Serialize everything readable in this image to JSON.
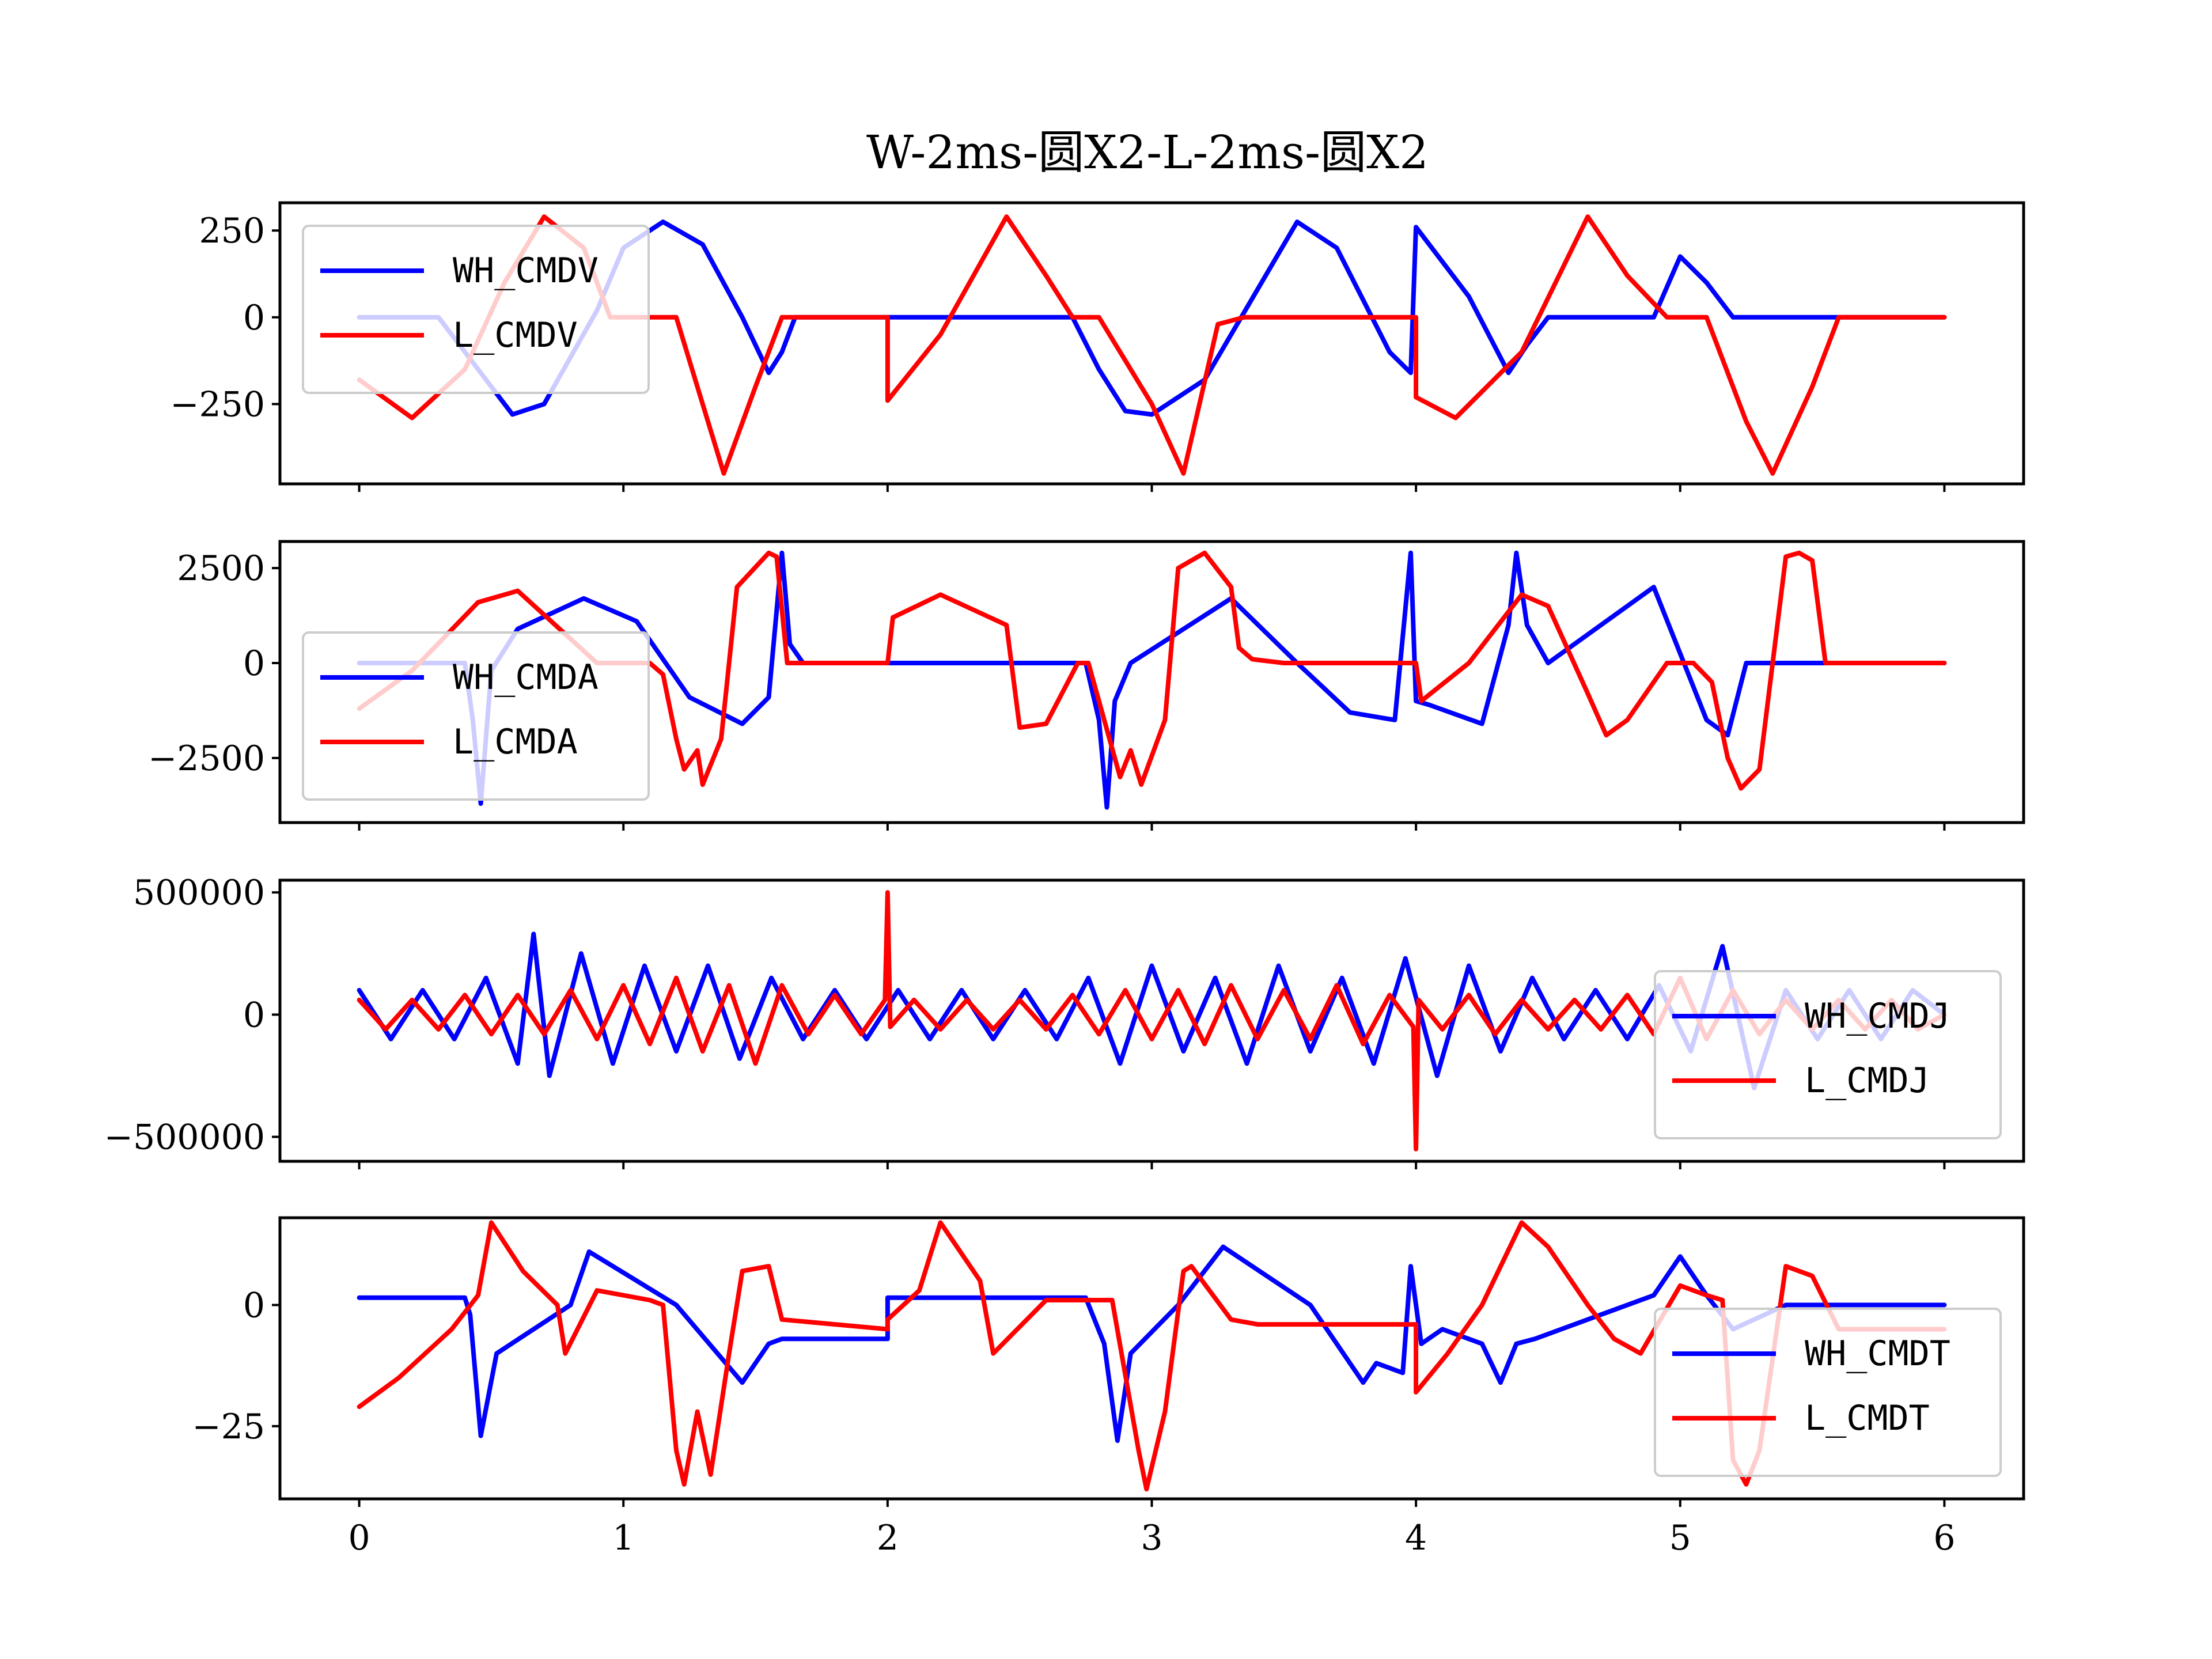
{
  "figure": {
    "title": "W-2ms-圆X2-L-2ms-圆X2"
  },
  "chart_data": [
    {
      "type": "line",
      "title": "",
      "xlabel": "",
      "ylabel": "",
      "xlim": [
        -0.3,
        6.3
      ],
      "ylim": [
        -480,
        330
      ],
      "xticks": [
        0,
        1,
        2,
        3,
        4,
        5,
        6
      ],
      "yticks": [
        -250,
        0,
        250
      ],
      "ytick_labels": [
        "−250",
        "0",
        "250"
      ],
      "legend": "upper-left",
      "grid": false,
      "series": [
        {
          "name": "WH_CMDV",
          "color": "#0000ff",
          "x": [
            0,
            0.3,
            0.5,
            0.58,
            0.7,
            0.9,
            1.0,
            1.15,
            1.3,
            1.45,
            1.55,
            1.6,
            1.65,
            2.0,
            2.7,
            2.8,
            2.9,
            3.0,
            3.2,
            3.55,
            3.7,
            3.9,
            3.98,
            4.0,
            4.2,
            4.35,
            4.42,
            4.5,
            4.9,
            5.0,
            5.1,
            5.2,
            6.0
          ],
          "y": [
            0,
            0,
            -200,
            -280,
            -250,
            20,
            200,
            275,
            210,
            0,
            -160,
            -100,
            0,
            0,
            0,
            -150,
            -270,
            -280,
            -180,
            275,
            200,
            -100,
            -160,
            260,
            60,
            -160,
            -80,
            0,
            0,
            175,
            100,
            0,
            0
          ]
        },
        {
          "name": "L_CMDV",
          "color": "#ff0000",
          "x": [
            0,
            0.2,
            0.4,
            0.55,
            0.7,
            0.85,
            0.95,
            1.2,
            1.3,
            1.38,
            1.5,
            1.6,
            2.0,
            2.0,
            2.2,
            2.45,
            2.6,
            2.7,
            2.8,
            3.0,
            3.12,
            3.25,
            3.35,
            4.0,
            4.0,
            4.15,
            4.4,
            4.65,
            4.8,
            4.95,
            5.1,
            5.25,
            5.35,
            5.5,
            5.6,
            6.0
          ],
          "y": [
            -180,
            -290,
            -150,
            100,
            290,
            200,
            0,
            0,
            -250,
            -450,
            -200,
            0,
            0,
            -240,
            -50,
            290,
            120,
            0,
            0,
            -250,
            -450,
            -20,
            0,
            0,
            -230,
            -290,
            -100,
            290,
            120,
            0,
            0,
            -300,
            -450,
            -200,
            0,
            0
          ]
        }
      ]
    },
    {
      "type": "line",
      "title": "",
      "xlabel": "",
      "ylabel": "",
      "xlim": [
        -0.3,
        6.3
      ],
      "ylim": [
        -4200,
        3200
      ],
      "xticks": [
        0,
        1,
        2,
        3,
        4,
        5,
        6
      ],
      "yticks": [
        -2500,
        0,
        2500
      ],
      "ytick_labels": [
        "−2500",
        "0",
        "2500"
      ],
      "legend": "lower-left",
      "grid": false,
      "series": [
        {
          "name": "WH_CMDA",
          "color": "#0000ff",
          "x": [
            0,
            0.4,
            0.43,
            0.46,
            0.5,
            0.6,
            0.85,
            1.05,
            1.25,
            1.45,
            1.55,
            1.6,
            1.63,
            1.68,
            2.0,
            2.75,
            2.8,
            2.83,
            2.86,
            2.92,
            3.3,
            3.55,
            3.75,
            3.92,
            3.98,
            4.0,
            4.05,
            4.25,
            4.35,
            4.38,
            4.42,
            4.5,
            4.9,
            5.1,
            5.18,
            5.25,
            6.0
          ],
          "y": [
            0,
            0,
            -1500,
            -3700,
            -200,
            900,
            1700,
            1100,
            -900,
            -1600,
            -900,
            2900,
            500,
            0,
            0,
            0,
            -1500,
            -3800,
            -1000,
            0,
            1700,
            0,
            -1300,
            -1500,
            2900,
            -1000,
            -1100,
            -1600,
            1000,
            2900,
            1000,
            0,
            2000,
            -1500,
            -1900,
            0,
            0
          ]
        },
        {
          "name": "L_CMDA",
          "color": "#ff0000",
          "x": [
            0,
            0.2,
            0.45,
            0.6,
            0.9,
            1.1,
            1.15,
            1.2,
            1.23,
            1.28,
            1.3,
            1.37,
            1.43,
            1.55,
            1.58,
            1.62,
            2.0,
            2.02,
            2.2,
            2.45,
            2.5,
            2.6,
            2.72,
            2.76,
            2.88,
            2.92,
            2.96,
            3.05,
            3.1,
            3.2,
            3.3,
            3.33,
            3.38,
            3.5,
            4.0,
            4.02,
            4.2,
            4.4,
            4.5,
            4.65,
            4.72,
            4.8,
            4.95,
            5.05,
            5.12,
            5.18,
            5.23,
            5.3,
            5.4,
            5.45,
            5.5,
            5.55,
            5.6,
            6.0
          ],
          "y": [
            -1200,
            -200,
            1600,
            1900,
            0,
            0,
            -300,
            -2000,
            -2800,
            -2300,
            -3200,
            -2000,
            2000,
            2900,
            2800,
            0,
            0,
            1200,
            1800,
            1000,
            -1700,
            -1600,
            0,
            0,
            -3000,
            -2300,
            -3200,
            -1500,
            2500,
            2900,
            2000,
            400,
            100,
            0,
            0,
            -1000,
            0,
            1800,
            1500,
            -800,
            -1900,
            -1500,
            0,
            0,
            -500,
            -2500,
            -3300,
            -2800,
            2800,
            2900,
            2700,
            0,
            0,
            0
          ]
        }
      ]
    },
    {
      "type": "line",
      "title": "",
      "xlabel": "",
      "ylabel": "",
      "xlim": [
        -0.3,
        6.3
      ],
      "ylim": [
        -600000,
        550000
      ],
      "xticks": [
        0,
        1,
        2,
        3,
        4,
        5,
        6
      ],
      "yticks": [
        -500000,
        0,
        500000
      ],
      "ytick_labels": [
        "−500000",
        "0",
        "500000"
      ],
      "legend": "lower-right",
      "grid": false,
      "series": [
        {
          "name": "WH_CMDJ",
          "color": "#0000ff",
          "x": [
            0,
            0.12,
            0.24,
            0.36,
            0.48,
            0.6,
            0.66,
            0.72,
            0.84,
            0.96,
            1.08,
            1.2,
            1.32,
            1.44,
            1.56,
            1.68,
            1.8,
            1.92,
            2.04,
            2.16,
            2.28,
            2.4,
            2.52,
            2.64,
            2.76,
            2.88,
            3.0,
            3.12,
            3.24,
            3.36,
            3.48,
            3.6,
            3.72,
            3.84,
            3.96,
            4.08,
            4.2,
            4.32,
            4.44,
            4.56,
            4.68,
            4.8,
            4.92,
            5.04,
            5.16,
            5.28,
            5.4,
            5.52,
            5.64,
            5.76,
            5.88,
            6.0
          ],
          "y": [
            100000,
            -100000,
            100000,
            -100000,
            150000,
            -200000,
            330000,
            -250000,
            250000,
            -200000,
            200000,
            -150000,
            200000,
            -180000,
            150000,
            -100000,
            100000,
            -100000,
            100000,
            -100000,
            100000,
            -100000,
            100000,
            -100000,
            150000,
            -200000,
            200000,
            -150000,
            150000,
            -200000,
            200000,
            -150000,
            150000,
            -200000,
            230000,
            -250000,
            200000,
            -150000,
            150000,
            -100000,
            100000,
            -100000,
            120000,
            -150000,
            280000,
            -300000,
            100000,
            -100000,
            100000,
            -100000,
            100000,
            0
          ]
        },
        {
          "name": "L_CMDJ",
          "color": "#ff0000",
          "x": [
            0,
            0.1,
            0.2,
            0.3,
            0.4,
            0.5,
            0.6,
            0.7,
            0.8,
            0.9,
            1.0,
            1.1,
            1.2,
            1.3,
            1.4,
            1.5,
            1.6,
            1.7,
            1.8,
            1.9,
            1.99,
            2.0,
            2.01,
            2.1,
            2.2,
            2.3,
            2.4,
            2.5,
            2.6,
            2.7,
            2.8,
            2.9,
            3.0,
            3.1,
            3.2,
            3.3,
            3.4,
            3.5,
            3.6,
            3.7,
            3.8,
            3.9,
            3.99,
            4.0,
            4.01,
            4.1,
            4.2,
            4.3,
            4.4,
            4.5,
            4.6,
            4.7,
            4.8,
            4.9,
            5.0,
            5.1,
            5.2,
            5.3,
            5.4,
            5.5,
            5.6,
            5.7,
            5.8,
            5.9,
            6.0
          ],
          "y": [
            60000,
            -60000,
            60000,
            -60000,
            80000,
            -80000,
            80000,
            -80000,
            100000,
            -100000,
            120000,
            -120000,
            150000,
            -150000,
            120000,
            -200000,
            120000,
            -80000,
            80000,
            -80000,
            60000,
            500000,
            -50000,
            60000,
            -60000,
            60000,
            -60000,
            60000,
            -60000,
            80000,
            -80000,
            100000,
            -100000,
            100000,
            -120000,
            120000,
            -100000,
            100000,
            -100000,
            120000,
            -120000,
            80000,
            -50000,
            -550000,
            60000,
            -60000,
            80000,
            -80000,
            60000,
            -60000,
            60000,
            -60000,
            80000,
            -80000,
            150000,
            -100000,
            100000,
            -80000,
            60000,
            -60000,
            60000,
            -60000,
            60000,
            -60000,
            0
          ]
        }
      ]
    },
    {
      "type": "line",
      "title": "",
      "xlabel": "",
      "ylabel": "",
      "xlim": [
        -0.3,
        6.3
      ],
      "ylim": [
        -40,
        18
      ],
      "xticks": [
        0,
        1,
        2,
        3,
        4,
        5,
        6
      ],
      "xtick_labels": [
        "0",
        "1",
        "2",
        "3",
        "4",
        "5",
        "6"
      ],
      "yticks": [
        -25,
        0
      ],
      "ytick_labels": [
        "−25",
        "0"
      ],
      "legend": "lower-right",
      "grid": false,
      "series": [
        {
          "name": "WH_CMDT",
          "color": "#0000ff",
          "x": [
            0,
            0.4,
            0.42,
            0.46,
            0.52,
            0.8,
            0.87,
            1.2,
            1.45,
            1.5,
            1.55,
            1.6,
            2.0,
            2.0,
            2.75,
            2.82,
            2.87,
            2.92,
            3.1,
            3.27,
            3.6,
            3.8,
            3.85,
            3.95,
            3.98,
            4.02,
            4.1,
            4.25,
            4.32,
            4.38,
            4.45,
            4.9,
            5.0,
            5.1,
            5.2,
            5.4,
            6.0
          ],
          "y": [
            1.5,
            1.5,
            -2,
            -27,
            -10,
            0,
            11,
            0,
            -16,
            -12,
            -8,
            -7,
            -7,
            1.5,
            1.5,
            -8,
            -28,
            -10,
            0,
            12,
            0,
            -16,
            -12,
            -14,
            8,
            -8,
            -5,
            -8,
            -16,
            -8,
            -7,
            2,
            10,
            2,
            -5,
            0,
            0
          ]
        },
        {
          "name": "L_CMDT",
          "color": "#ff0000",
          "x": [
            0,
            0.15,
            0.35,
            0.45,
            0.5,
            0.62,
            0.75,
            0.78,
            0.9,
            1.0,
            1.1,
            1.15,
            1.2,
            1.23,
            1.28,
            1.33,
            1.4,
            1.45,
            1.55,
            1.6,
            2.0,
            2.0,
            2.12,
            2.2,
            2.35,
            2.4,
            2.6,
            2.7,
            2.85,
            2.95,
            2.98,
            3.05,
            3.12,
            3.15,
            3.3,
            3.4,
            3.5,
            4.0,
            4.0,
            4.12,
            4.25,
            4.4,
            4.5,
            4.65,
            4.75,
            4.85,
            5.0,
            5.1,
            5.16,
            5.2,
            5.25,
            5.3,
            5.4,
            5.5,
            5.6,
            6.0
          ],
          "y": [
            -21,
            -15,
            -5,
            2,
            17,
            7,
            0,
            -10,
            3,
            2,
            1,
            0,
            -30,
            -37,
            -22,
            -35,
            -10,
            7,
            8,
            -3,
            -5,
            -3,
            3,
            17,
            5,
            -10,
            1,
            1,
            1,
            -30,
            -38,
            -22,
            7,
            8,
            -3,
            -4,
            -4,
            -4,
            -18,
            -10,
            0,
            17,
            12,
            0,
            -7,
            -10,
            4,
            2,
            1,
            -32,
            -37,
            -30,
            8,
            6,
            -5,
            -5
          ]
        }
      ]
    }
  ]
}
